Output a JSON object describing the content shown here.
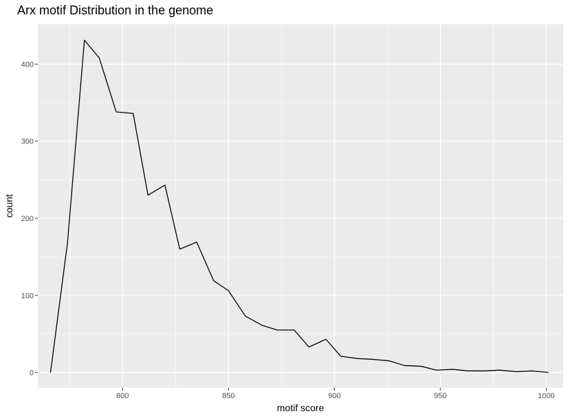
{
  "chart_data": {
    "type": "line",
    "title": "Arx motif Distribution in the genome",
    "xlabel": "motif score",
    "ylabel": "count",
    "xlim": [
      760,
      1008
    ],
    "ylim": [
      -20,
      452
    ],
    "x_ticks": [
      800,
      850,
      900,
      950,
      1000
    ],
    "y_ticks": [
      0,
      100,
      200,
      300,
      400
    ],
    "grid": true,
    "legend": "none",
    "colors": {
      "panel": "#ebebeb",
      "grid": "#ffffff",
      "line": "#000000"
    },
    "series": [
      {
        "x": [
          766,
          774,
          782,
          789,
          797,
          805,
          812,
          820,
          827,
          835,
          843,
          850,
          858,
          866,
          873,
          881,
          888,
          896,
          903,
          911,
          918,
          926,
          933,
          941,
          948,
          956,
          963,
          971,
          978,
          986,
          993,
          1001
        ],
        "values": [
          0,
          168,
          431,
          408,
          338,
          336,
          230,
          243,
          160,
          169,
          119,
          106,
          73,
          61,
          55,
          55,
          33,
          43,
          21,
          18,
          17,
          15,
          9,
          8,
          3,
          4,
          2,
          2,
          3,
          1,
          2,
          0
        ]
      }
    ]
  }
}
